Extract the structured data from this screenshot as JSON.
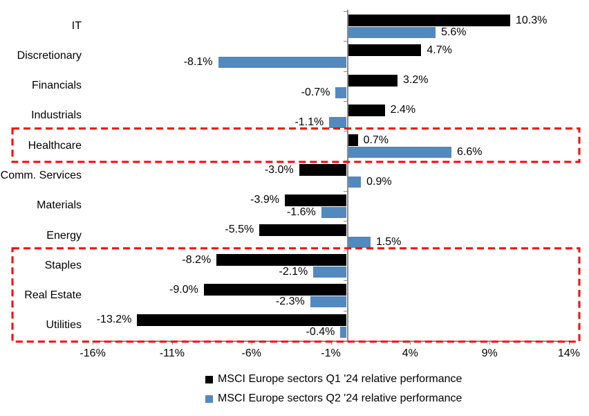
{
  "chart_data": {
    "type": "bar",
    "orientation": "horizontal",
    "title": "",
    "categories": [
      "IT",
      "Discretionary",
      "Financials",
      "Industrials",
      "Healthcare",
      "Comm. Services",
      "Materials",
      "Energy",
      "Staples",
      "Real Estate",
      "Utilities"
    ],
    "series": [
      {
        "name": "MSCI Europe sectors Q1 '24 relative performance",
        "color": "#000000",
        "values": [
          10.3,
          4.7,
          3.2,
          2.4,
          0.7,
          -3.0,
          -3.9,
          -5.5,
          -8.2,
          -9.0,
          -13.2
        ],
        "value_labels": [
          "10.3%",
          "4.7%",
          "3.2%",
          "2.4%",
          "0.7%",
          "-3.0%",
          "-3.9%",
          "-5.5%",
          "-8.2%",
          "-9.0%",
          "-13.2%"
        ]
      },
      {
        "name": "MSCI Europe sectors Q2 '24 relative performance",
        "color": "#5289BE",
        "values": [
          5.6,
          -8.1,
          -0.7,
          -1.1,
          6.6,
          0.9,
          -1.6,
          1.5,
          -2.1,
          -2.3,
          -0.4
        ],
        "value_labels": [
          "5.6%",
          "-8.1%",
          "-0.7%",
          "-1.1%",
          "6.6%",
          "0.9%",
          "-1.6%",
          "1.5%",
          "-2.1%",
          "-2.3%",
          "-0.4%"
        ]
      }
    ],
    "x_axis": {
      "min": -16,
      "max": 14,
      "ticks": [
        -16,
        -11,
        -6,
        -1,
        4,
        9,
        14
      ],
      "tick_labels": [
        "-16%",
        "-11%",
        "-6%",
        "-1%",
        "4%",
        "9%",
        "14%"
      ]
    },
    "grid": false,
    "legend_position": "bottom",
    "highlights": [
      {
        "type": "dashed-box",
        "color": "#FF0000",
        "categories": [
          "Healthcare"
        ]
      },
      {
        "type": "dashed-box",
        "color": "#FF0000",
        "categories": [
          "Staples",
          "Real Estate",
          "Utilities"
        ]
      }
    ],
    "axis_color": "#8c8c8c"
  }
}
